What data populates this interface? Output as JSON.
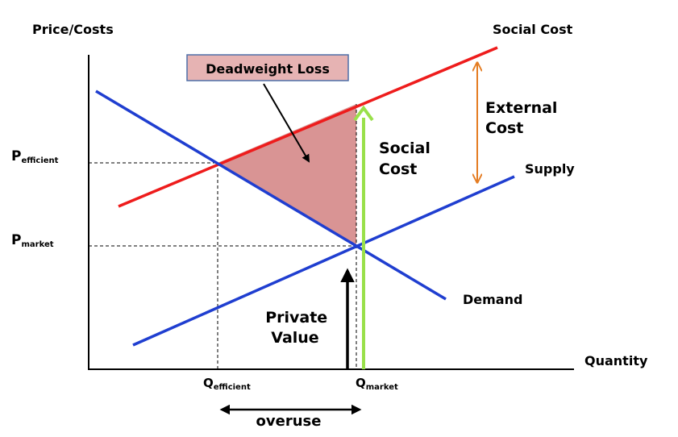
{
  "labels": {
    "y_axis": "Price/Costs",
    "x_axis": "Quantity",
    "social_cost_curve": "Social Cost",
    "supply_curve": "Supply",
    "demand_curve": "Demand",
    "deadweight_loss": "Deadweight Loss",
    "external_cost_line1": "External",
    "external_cost_line2": "Cost",
    "social_cost_arrow_line1": "Social",
    "social_cost_arrow_line2": "Cost",
    "private_value_line1": "Private",
    "private_value_line2": "Value",
    "overuse": "overuse",
    "p_efficient_main": "P",
    "p_efficient_sub": "efficient",
    "p_market_main": "P",
    "p_market_sub": "market",
    "q_efficient_main": "Q",
    "q_efficient_sub": "efficient",
    "q_market_main": "Q",
    "q_market_sub": "market"
  },
  "colors": {
    "social_cost": "#ee1c1c",
    "supply_demand": "#1f3ed0",
    "deadweight_fill": "#d99494",
    "label_box_fill": "#e6b3b3",
    "label_box_border": "#4f6fa8",
    "external_cost": "#e47c22",
    "social_cost_arrow": "#99e04a",
    "social_cost_text": "#77933c",
    "axis": "#000000"
  }
}
